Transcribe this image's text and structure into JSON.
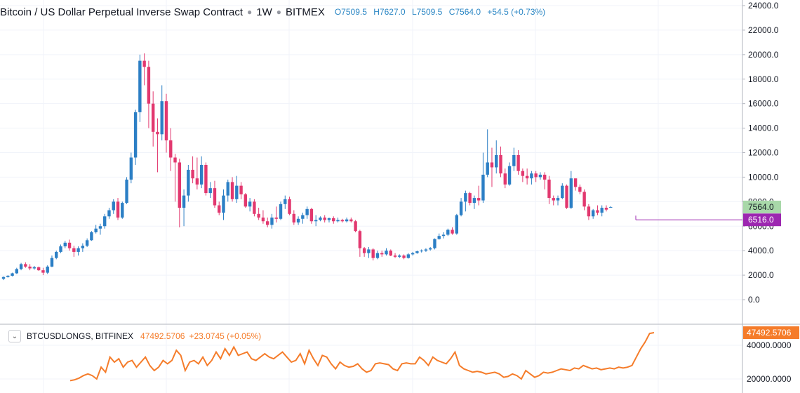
{
  "legend": {
    "symbol": "Bitcoin / US Dollar Perpetual Inverse Swap Contract",
    "interval": "1W",
    "exchange": "BITMEX",
    "ohlc": {
      "open": "O7509.5",
      "high": "H7627.0",
      "low": "L7509.5",
      "close": "C7564.0",
      "change": "+54.5 (+0.73%)"
    }
  },
  "indicator": {
    "name": "BTCUSDLONGS, BITFINEX",
    "value": "47492.5706",
    "change": "+23.0745 (+0.05%)",
    "collapse_icon": "chevron-down-icon"
  },
  "colors": {
    "up": "#2c7fc5",
    "down": "#e2386f",
    "line": "#f57c2a",
    "last_price_bg": "#a8d8a9",
    "marker_bg": "#9c27b0",
    "marker_line": "#9c27b0",
    "grid": "#f0f3fa"
  },
  "chart_data": [
    {
      "type": "candlestick",
      "title": "Bitcoin / US Dollar Perpetual Inverse Swap Contract · 1W · BITMEX",
      "ylim": [
        -2000,
        24500
      ],
      "y_ticks": [
        "24000.0",
        "22000.0",
        "20000.0",
        "18000.0",
        "16000.0",
        "14000.0",
        "12000.0",
        "10000.0",
        "8000.0",
        "6000.0",
        "4000.0",
        "2000.0",
        "0.0"
      ],
      "last_price_label": "7564.0",
      "last_price": 7564.0,
      "marker_label": "6516.0",
      "marker_price": 6516.0,
      "candles": [
        [
          1700,
          1900,
          1600,
          1850
        ],
        [
          1850,
          2000,
          1800,
          1950
        ],
        [
          1950,
          2200,
          1900,
          2150
        ],
        [
          2150,
          2600,
          2100,
          2500
        ],
        [
          2500,
          3000,
          2400,
          2900
        ],
        [
          2900,
          3050,
          2600,
          2700
        ],
        [
          2700,
          2900,
          2400,
          2550
        ],
        [
          2550,
          2750,
          2450,
          2650
        ],
        [
          2650,
          2700,
          2350,
          2400
        ],
        [
          2400,
          2600,
          2000,
          2200
        ],
        [
          2200,
          2800,
          2100,
          2700
        ],
        [
          2700,
          3600,
          2650,
          3400
        ],
        [
          3400,
          4000,
          3300,
          3900
        ],
        [
          3900,
          4500,
          3800,
          4350
        ],
        [
          4350,
          4800,
          4200,
          4650
        ],
        [
          4650,
          4900,
          4000,
          4200
        ],
        [
          4200,
          4400,
          3500,
          3900
        ],
        [
          3900,
          4350,
          3600,
          4200
        ],
        [
          4200,
          4600,
          3900,
          4400
        ],
        [
          4400,
          5000,
          4300,
          4850
        ],
        [
          4850,
          5600,
          4800,
          5500
        ],
        [
          5500,
          6100,
          5400,
          5800
        ],
        [
          5800,
          6200,
          5300,
          6000
        ],
        [
          6000,
          7000,
          5800,
          6800
        ],
        [
          6800,
          7500,
          6600,
          7300
        ],
        [
          7300,
          8200,
          7000,
          8000
        ],
        [
          8000,
          8300,
          6500,
          6700
        ],
        [
          6700,
          8000,
          6600,
          7900
        ],
        [
          7900,
          10000,
          7800,
          9800
        ],
        [
          9800,
          12000,
          9500,
          11600
        ],
        [
          11600,
          15500,
          11000,
          15300
        ],
        [
          15300,
          20000,
          14500,
          19500
        ],
        [
          19500,
          20100,
          17500,
          19000
        ],
        [
          19000,
          19500,
          14000,
          16000
        ],
        [
          16000,
          17000,
          12500,
          13700
        ],
        [
          13700,
          14800,
          10400,
          13500
        ],
        [
          13500,
          17500,
          13000,
          16200
        ],
        [
          16200,
          16800,
          12000,
          13000
        ],
        [
          13000,
          14000,
          10500,
          11600
        ],
        [
          11600,
          11900,
          8000,
          11200
        ],
        [
          11200,
          11500,
          5900,
          7500
        ],
        [
          7500,
          9000,
          6000,
          8500
        ],
        [
          8500,
          11000,
          8000,
          10600
        ],
        [
          10600,
          11700,
          9500,
          9900
        ],
        [
          9900,
          11600,
          9000,
          9400
        ],
        [
          9400,
          11700,
          9100,
          11000
        ],
        [
          11000,
          11200,
          8500,
          8700
        ],
        [
          8700,
          9600,
          8300,
          9100
        ],
        [
          9100,
          9700,
          7500,
          7700
        ],
        [
          7700,
          8000,
          6900,
          7100
        ],
        [
          7100,
          9000,
          6500,
          8500
        ],
        [
          8500,
          9800,
          8000,
          9600
        ],
        [
          9600,
          10000,
          8000,
          8200
        ],
        [
          8200,
          10100,
          7900,
          9300
        ],
        [
          9300,
          9600,
          8200,
          8600
        ],
        [
          8600,
          8700,
          7500,
          7600
        ],
        [
          7600,
          8300,
          7200,
          8000
        ],
        [
          8000,
          8200,
          6800,
          7000
        ],
        [
          7000,
          7500,
          6500,
          6700
        ],
        [
          6700,
          7300,
          6200,
          6400
        ],
        [
          6400,
          6700,
          5900,
          6100
        ],
        [
          6100,
          7000,
          5800,
          6700
        ],
        [
          6700,
          7600,
          6300,
          6600
        ],
        [
          6600,
          8000,
          6500,
          7800
        ],
        [
          7800,
          8500,
          7400,
          8200
        ],
        [
          8200,
          8400,
          6900,
          7000
        ],
        [
          7000,
          7300,
          6100,
          6300
        ],
        [
          6300,
          6800,
          6100,
          6600
        ],
        [
          6600,
          7100,
          6200,
          6900
        ],
        [
          6900,
          7600,
          6600,
          7400
        ],
        [
          7400,
          7500,
          6200,
          6400
        ],
        [
          6400,
          6900,
          6000,
          6500
        ],
        [
          6500,
          6800,
          6400,
          6700
        ],
        [
          6700,
          6900,
          6300,
          6500
        ],
        [
          6500,
          6700,
          6300,
          6650
        ],
        [
          6650,
          6800,
          6200,
          6400
        ],
        [
          6400,
          6700,
          6300,
          6500
        ],
        [
          6500,
          6600,
          6300,
          6400
        ],
        [
          6400,
          6700,
          6300,
          6550
        ],
        [
          6550,
          6700,
          6300,
          6400
        ],
        [
          6400,
          6500,
          5500,
          5600
        ],
        [
          5600,
          5700,
          3500,
          4200
        ],
        [
          4200,
          4300,
          3500,
          3800
        ],
        [
          3800,
          4300,
          3400,
          4100
        ],
        [
          4100,
          4200,
          3200,
          3400
        ],
        [
          3400,
          4000,
          3300,
          3800
        ],
        [
          3800,
          4000,
          3500,
          3700
        ],
        [
          3700,
          4200,
          3600,
          4000
        ],
        [
          4000,
          4100,
          3550,
          3600
        ],
        [
          3600,
          3800,
          3400,
          3500
        ],
        [
          3500,
          3700,
          3400,
          3600
        ],
        [
          3600,
          3700,
          3300,
          3400
        ],
        [
          3400,
          3800,
          3350,
          3700
        ],
        [
          3700,
          3900,
          3600,
          3800
        ],
        [
          3800,
          4000,
          3750,
          3950
        ],
        [
          3950,
          4100,
          3850,
          4000
        ],
        [
          4000,
          4200,
          3900,
          4100
        ],
        [
          4100,
          4300,
          4000,
          4200
        ],
        [
          4200,
          5000,
          4100,
          4950
        ],
        [
          4950,
          5400,
          4900,
          5200
        ],
        [
          5200,
          5500,
          5000,
          5300
        ],
        [
          5300,
          5800,
          5200,
          5700
        ],
        [
          5700,
          5900,
          5300,
          5400
        ],
        [
          5400,
          7000,
          5300,
          6900
        ],
        [
          6900,
          8300,
          6800,
          8000
        ],
        [
          8000,
          8900,
          7200,
          8700
        ],
        [
          8700,
          8800,
          7700,
          7900
        ],
        [
          7900,
          8500,
          7400,
          8300
        ],
        [
          8300,
          9300,
          7700,
          8100
        ],
        [
          8100,
          12000,
          7900,
          10200
        ],
        [
          10200,
          13900,
          10000,
          11200
        ],
        [
          11200,
          12400,
          9200,
          10800
        ],
        [
          10800,
          13000,
          10300,
          11800
        ],
        [
          11800,
          12500,
          10000,
          10300
        ],
        [
          10300,
          10700,
          9100,
          9400
        ],
        [
          9400,
          11200,
          9300,
          10900
        ],
        [
          10900,
          12400,
          10500,
          11800
        ],
        [
          11800,
          12200,
          10200,
          10500
        ],
        [
          10500,
          10700,
          9600,
          10100
        ],
        [
          10100,
          10700,
          9400,
          9900
        ],
        [
          9900,
          10500,
          9400,
          10300
        ],
        [
          10300,
          10500,
          9600,
          10000
        ],
        [
          10000,
          10400,
          9800,
          10200
        ],
        [
          10200,
          10400,
          9000,
          9800
        ],
        [
          9800,
          10100,
          7800,
          8300
        ],
        [
          8300,
          8500,
          7700,
          8100
        ],
        [
          8100,
          8500,
          7700,
          8300
        ],
        [
          8300,
          9500,
          8200,
          9300
        ],
        [
          9300,
          9400,
          7400,
          7500
        ],
        [
          7500,
          10500,
          7400,
          9900
        ],
        [
          9900,
          9800,
          8900,
          9200
        ],
        [
          9200,
          9400,
          8600,
          8800
        ],
        [
          8800,
          9000,
          7300,
          7600
        ],
        [
          7600,
          7800,
          6500,
          6800
        ],
        [
          6800,
          7400,
          6600,
          7300
        ],
        [
          7300,
          7700,
          6900,
          7100
        ],
        [
          7100,
          7700,
          6800,
          7500
        ],
        [
          7500,
          7700,
          7200,
          7350
        ],
        [
          7509.5,
          7627,
          7509.5,
          7564
        ]
      ]
    },
    {
      "type": "line",
      "title": "BTCUSDLONGS, BITFINEX",
      "y_ticks": [
        "40000.0000",
        "20000.0000"
      ],
      "last_value_label": "47492.5706",
      "values": [
        19000,
        19500,
        20500,
        22000,
        23000,
        22000,
        20000,
        27000,
        24000,
        33000,
        30000,
        32000,
        27000,
        30000,
        31000,
        27000,
        30000,
        33000,
        28000,
        25000,
        27000,
        31000,
        29000,
        31000,
        37000,
        34000,
        25000,
        30000,
        31000,
        29000,
        33000,
        28000,
        31000,
        36000,
        32000,
        38000,
        34000,
        39000,
        34000,
        35000,
        36000,
        32000,
        31000,
        33000,
        35000,
        33000,
        32000,
        34000,
        36000,
        33000,
        30000,
        31000,
        35000,
        29000,
        37000,
        32000,
        28000,
        34000,
        33000,
        29000,
        26000,
        30000,
        28000,
        27000,
        27500,
        29000,
        26000,
        24000,
        25000,
        29000,
        29500,
        29000,
        28500,
        26000,
        25000,
        29000,
        29500,
        29000,
        29000,
        33000,
        31000,
        28000,
        33000,
        31000,
        30000,
        29000,
        32000,
        36000,
        28000,
        26000,
        25000,
        24000,
        24500,
        24000,
        23000,
        23500,
        24000,
        23000,
        21000,
        21500,
        23000,
        22000,
        20000,
        25000,
        23000,
        21000,
        22000,
        24000,
        23500,
        24000,
        25000,
        26000,
        25500,
        25000,
        26500,
        26000,
        28000,
        27000,
        26000,
        26500,
        25500,
        26000,
        26500,
        26000,
        27000,
        26500,
        27000,
        28000,
        33000,
        38000,
        42000,
        47000,
        47492.5706
      ]
    }
  ]
}
